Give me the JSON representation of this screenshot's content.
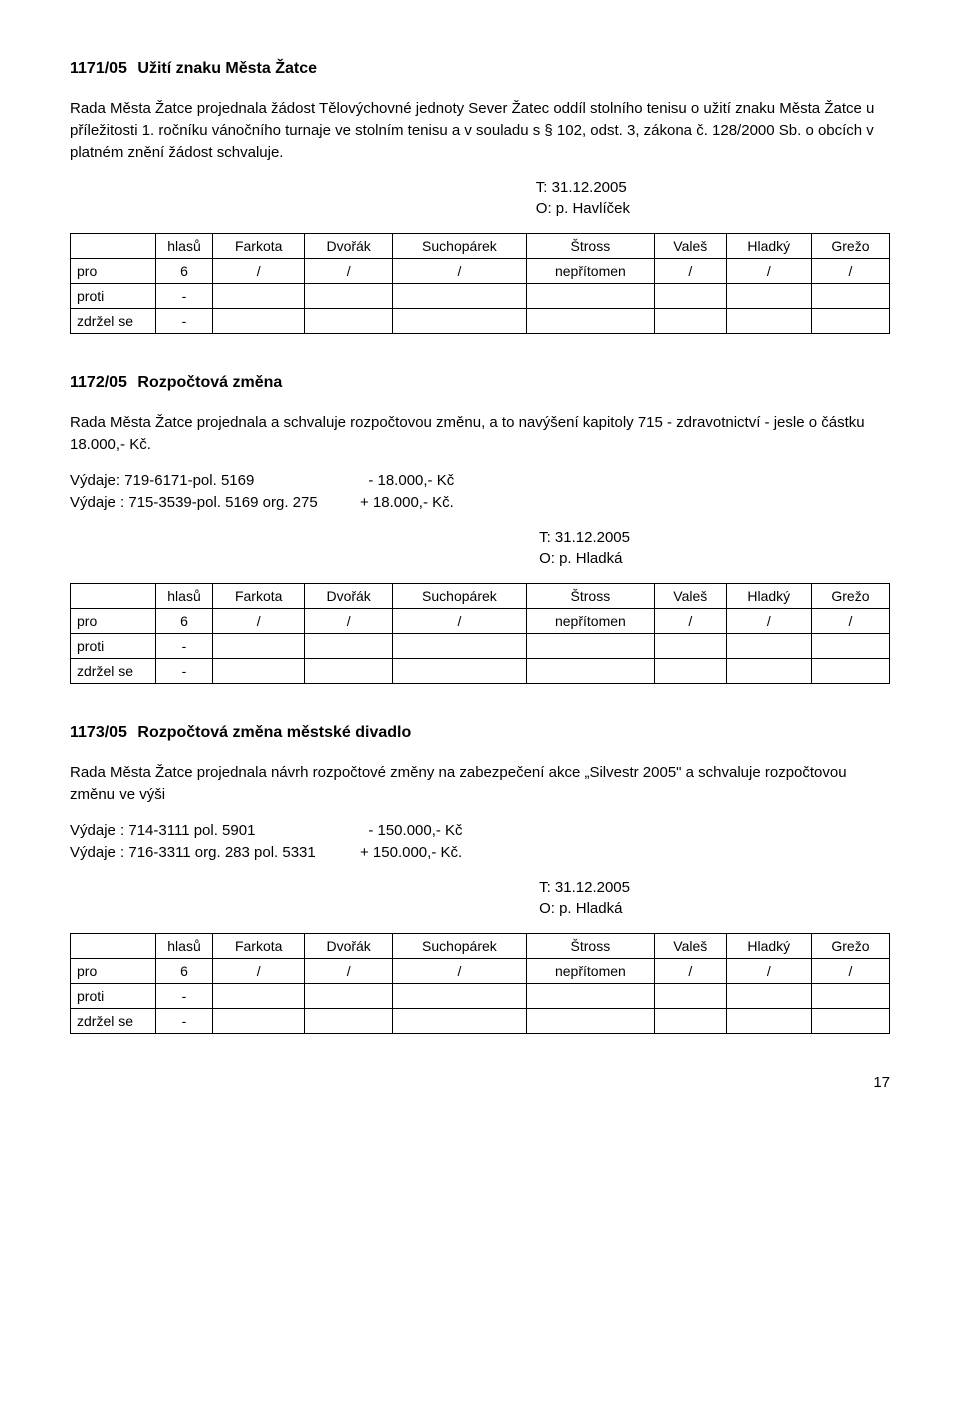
{
  "sections": [
    {
      "num": "1171/05",
      "title": "Užití znaku Města Žatce",
      "paragraphs": [
        "Rada Města Žatce projednala žádost Tělovýchovné jednoty Sever Žatec oddíl stolního tenisu o užití znaku Města Žatce u příležitosti 1. ročníku vánočního turnaje ve stolním tenisu a v souladu s § 102, odst. 3, zákona č. 128/2000 Sb. o obcích v platném znění žádost schvaluje."
      ],
      "meta": {
        "t": "T:  31.12.2005",
        "o": "O:  p. Havlíček"
      }
    },
    {
      "num": "1172/05",
      "title": "Rozpočtová změna",
      "paragraphs": [
        "Rada Města Žatce projednala a schvaluje rozpočtovou změnu, a to navýšení kapitoly 715 - zdravotnictví - jesle o částku 18.000,- Kč."
      ],
      "budget": [
        {
          "label": "Výdaje: 719-6171-pol. 5169",
          "value": "  - 18.000,- Kč"
        },
        {
          "label": "Výdaje : 715-3539-pol. 5169  org. 275",
          "value": "+ 18.000,- Kč."
        }
      ],
      "meta": {
        "t": "T:  31.12.2005",
        "o": "O:  p. Hladká"
      }
    },
    {
      "num": "1173/05",
      "title": "Rozpočtová změna městské divadlo",
      "paragraphs": [
        "Rada Města Žatce projednala návrh rozpočtové změny na zabezpečení akce „Silvestr 2005\" a schvaluje rozpočtovou změnu ve výši"
      ],
      "budget": [
        {
          "label": "Výdaje : 714-3111 pol. 5901",
          "value": "  - 150.000,- Kč"
        },
        {
          "label": "Výdaje : 716-3311 org. 283 pol. 5331",
          "value": "+ 150.000,- Kč."
        }
      ],
      "meta": {
        "t": "T:  31.12.2005",
        "o": "O:  p. Hladká"
      }
    }
  ],
  "vote_table": {
    "columns": [
      "",
      "hlasů",
      "Farkota",
      "Dvořák",
      "Suchopárek",
      "Štross",
      "Valeš",
      "Hladký",
      "Grežo"
    ],
    "rows": [
      [
        "pro",
        "6",
        "/",
        "/",
        "/",
        "nepřítomen",
        "/",
        "/",
        "/"
      ],
      [
        "proti",
        "-",
        "",
        "",
        "",
        "",
        "",
        "",
        ""
      ],
      [
        "zdržel se",
        "-",
        "",
        "",
        "",
        "",
        "",
        "",
        ""
      ]
    ]
  },
  "page_number": "17"
}
